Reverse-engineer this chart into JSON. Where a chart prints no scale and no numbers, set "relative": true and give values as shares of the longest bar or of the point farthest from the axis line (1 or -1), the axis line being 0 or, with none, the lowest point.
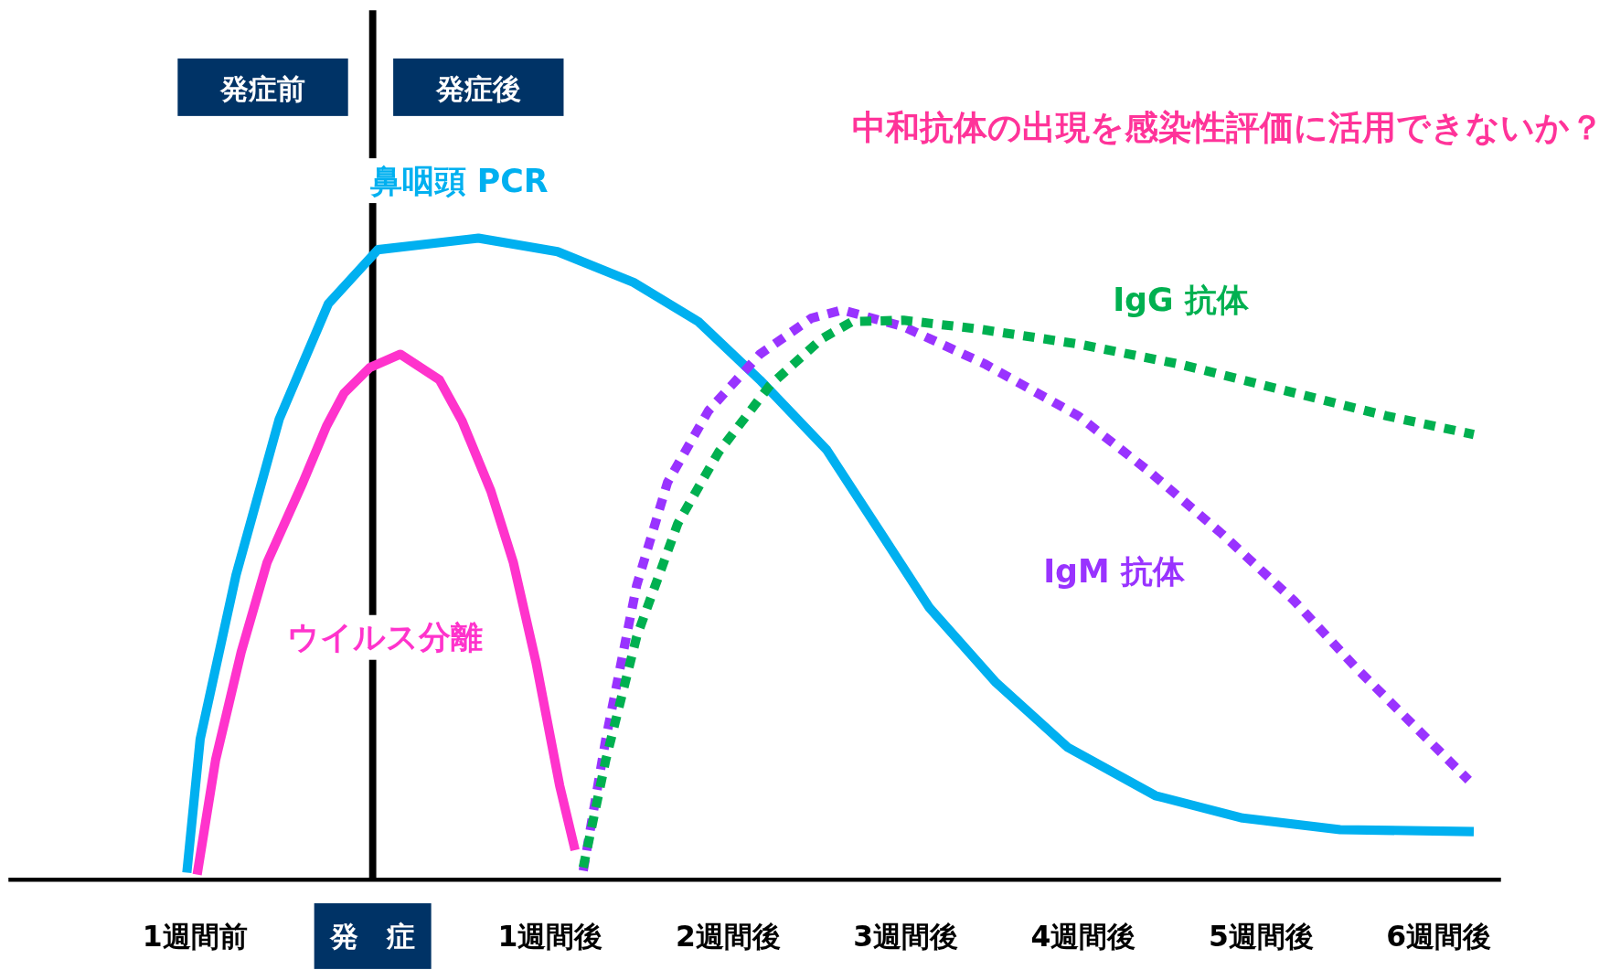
{
  "chart_data": {
    "type": "line",
    "title": "中和抗体の出現を感染性評価に活用できないか？",
    "relative": true,
    "legend": false,
    "grid": false,
    "xlim": [
      -2.05,
      6.35
    ],
    "xticks": [
      {
        "value": -1,
        "label": "1週間前"
      },
      {
        "value": 0,
        "label": "発　症"
      },
      {
        "value": 1,
        "label": "1週間後"
      },
      {
        "value": 2,
        "label": "2週間後"
      },
      {
        "value": 3,
        "label": "3週間後"
      },
      {
        "value": 4,
        "label": "4週間後"
      },
      {
        "value": 5,
        "label": "5週間後"
      },
      {
        "value": 6,
        "label": "6週間後"
      }
    ],
    "series": [
      {
        "name": "鼻咽頭 PCR",
        "color": "#00b0f0",
        "line_style": "solid",
        "x": [
          -1.046,
          -0.971,
          -0.769,
          -0.526,
          -0.249,
          0.029,
          0.595,
          1.04,
          1.468,
          1.832,
          2.179,
          2.555,
          2.844,
          3.133,
          3.509,
          3.913,
          4.405,
          4.896,
          5.445,
          6.197
        ],
        "values": [
          0.011,
          0.219,
          0.475,
          0.718,
          0.898,
          0.982,
          1.0,
          0.979,
          0.931,
          0.87,
          0.779,
          0.67,
          0.547,
          0.424,
          0.307,
          0.206,
          0.131,
          0.096,
          0.078,
          0.075
        ]
      },
      {
        "name": "ウイルス分離",
        "color": "#ff33cc",
        "line_style": "solid",
        "x": [
          -0.988,
          -0.884,
          -0.74,
          -0.595,
          -0.393,
          -0.26,
          -0.162,
          -0.017,
          0.156,
          0.376,
          0.503,
          0.665,
          0.792,
          0.919,
          1.052,
          1.139
        ],
        "values": [
          0.008,
          0.187,
          0.355,
          0.494,
          0.619,
          0.707,
          0.758,
          0.798,
          0.819,
          0.779,
          0.715,
          0.606,
          0.494,
          0.339,
          0.147,
          0.046
        ]
      },
      {
        "name": "IgM 抗体",
        "color": "#9933ff",
        "line_style": "dotted",
        "x": [
          1.185,
          1.312,
          1.486,
          1.659,
          1.89,
          2.179,
          2.468,
          2.642,
          2.988,
          3.451,
          3.971,
          4.376,
          4.78,
          5.185,
          5.532,
          5.879,
          6.168
        ],
        "values": [
          0.014,
          0.219,
          0.459,
          0.619,
          0.731,
          0.819,
          0.875,
          0.888,
          0.862,
          0.803,
          0.723,
          0.635,
          0.539,
          0.435,
          0.331,
          0.235,
          0.155
        ]
      },
      {
        "name": "IgG 抗体",
        "color": "#00b050",
        "line_style": "dotted",
        "x": [
          1.185,
          1.312,
          1.486,
          1.717,
          1.948,
          2.237,
          2.526,
          2.699,
          2.988,
          3.393,
          3.971,
          4.549,
          5.127,
          5.705,
          6.197
        ],
        "values": [
          0.019,
          0.187,
          0.379,
          0.555,
          0.667,
          0.771,
          0.843,
          0.87,
          0.872,
          0.859,
          0.835,
          0.803,
          0.763,
          0.723,
          0.694
        ]
      }
    ],
    "ref_lines": [
      {
        "axis": "x",
        "value": 0,
        "color": "#000000"
      }
    ],
    "annotations": [
      "発症前",
      "発症後"
    ]
  }
}
